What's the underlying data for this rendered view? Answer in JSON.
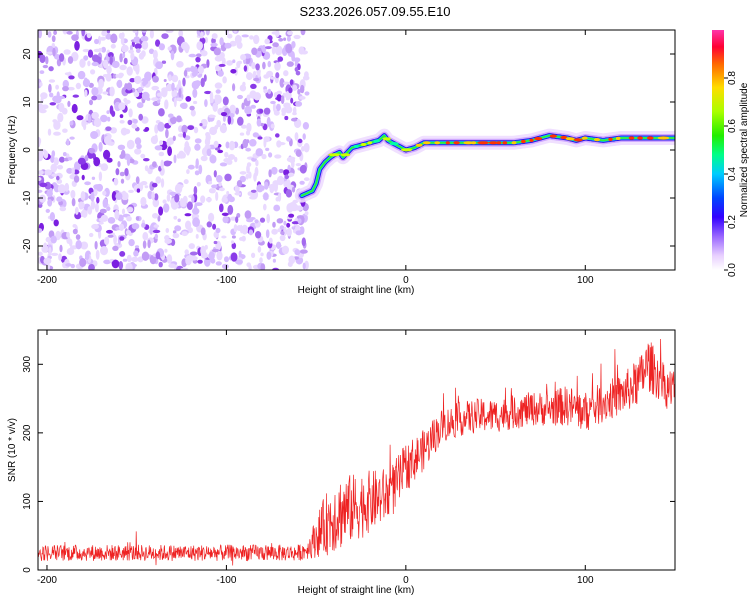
{
  "title": "S233.2026.057.09.55.E10",
  "chart_data": [
    {
      "type": "heatmap",
      "xlabel": "Height of straight line (km)",
      "ylabel": "Frequency (Hz)",
      "xlim": [
        -205,
        150
      ],
      "ylim": [
        -25,
        25
      ],
      "xticks": [
        -200,
        -100,
        0,
        100
      ],
      "yticks": [
        -20,
        -10,
        0,
        10,
        20
      ],
      "colorbar": {
        "label": "Normalized spectral amplitude",
        "range": [
          0.0,
          1.0
        ],
        "ticks": [
          0.0,
          0.2,
          0.4,
          0.6,
          0.8
        ]
      },
      "noise_region_x": [
        -205,
        -55
      ],
      "trace": {
        "x": [
          -58,
          -55,
          -52,
          -50,
          -48,
          -45,
          -42,
          -40,
          -37,
          -35,
          -30,
          -25,
          -20,
          -15,
          -12,
          -10,
          -5,
          0,
          5,
          10,
          20,
          40,
          60,
          70,
          80,
          90,
          95,
          100,
          110,
          120,
          150
        ],
        "freq_hz": [
          -9.5,
          -9,
          -8.5,
          -7,
          -4,
          -2.5,
          -1.5,
          -1,
          -0.5,
          -1.5,
          0.5,
          1,
          1.5,
          2,
          3,
          2,
          1,
          0,
          0.5,
          1.5,
          1.5,
          1.5,
          1.5,
          2,
          3,
          2.5,
          2,
          2.5,
          2,
          2.5,
          2.5
        ]
      }
    },
    {
      "type": "line",
      "xlabel": "Height of straight line (km)",
      "ylabel": "SNR (10 * v/v)",
      "xlim": [
        -205,
        150
      ],
      "ylim": [
        0,
        350
      ],
      "xticks": [
        -200,
        -100,
        0,
        100
      ],
      "yticks": [
        0,
        100,
        200,
        300
      ],
      "color": "#ee2222",
      "series": [
        {
          "name": "SNR",
          "x": [
            -205,
            -150,
            -100,
            -60,
            -55,
            -45,
            -40,
            -35,
            -30,
            -25,
            -20,
            -10,
            -5,
            0,
            10,
            20,
            30,
            40,
            50,
            60,
            70,
            80,
            90,
            100,
            110,
            120,
            130,
            135,
            140,
            145,
            150
          ],
          "mean": [
            25,
            25,
            25,
            25,
            30,
            65,
            80,
            85,
            90,
            95,
            100,
            110,
            125,
            150,
            175,
            210,
            220,
            225,
            225,
            230,
            235,
            235,
            240,
            230,
            245,
            255,
            275,
            300,
            285,
            265,
            265
          ],
          "spread": [
            12,
            12,
            12,
            12,
            14,
            45,
            55,
            55,
            50,
            50,
            45,
            40,
            40,
            35,
            30,
            25,
            25,
            25,
            25,
            25,
            25,
            25,
            30,
            30,
            30,
            30,
            35,
            40,
            35,
            30,
            30
          ]
        }
      ]
    }
  ]
}
